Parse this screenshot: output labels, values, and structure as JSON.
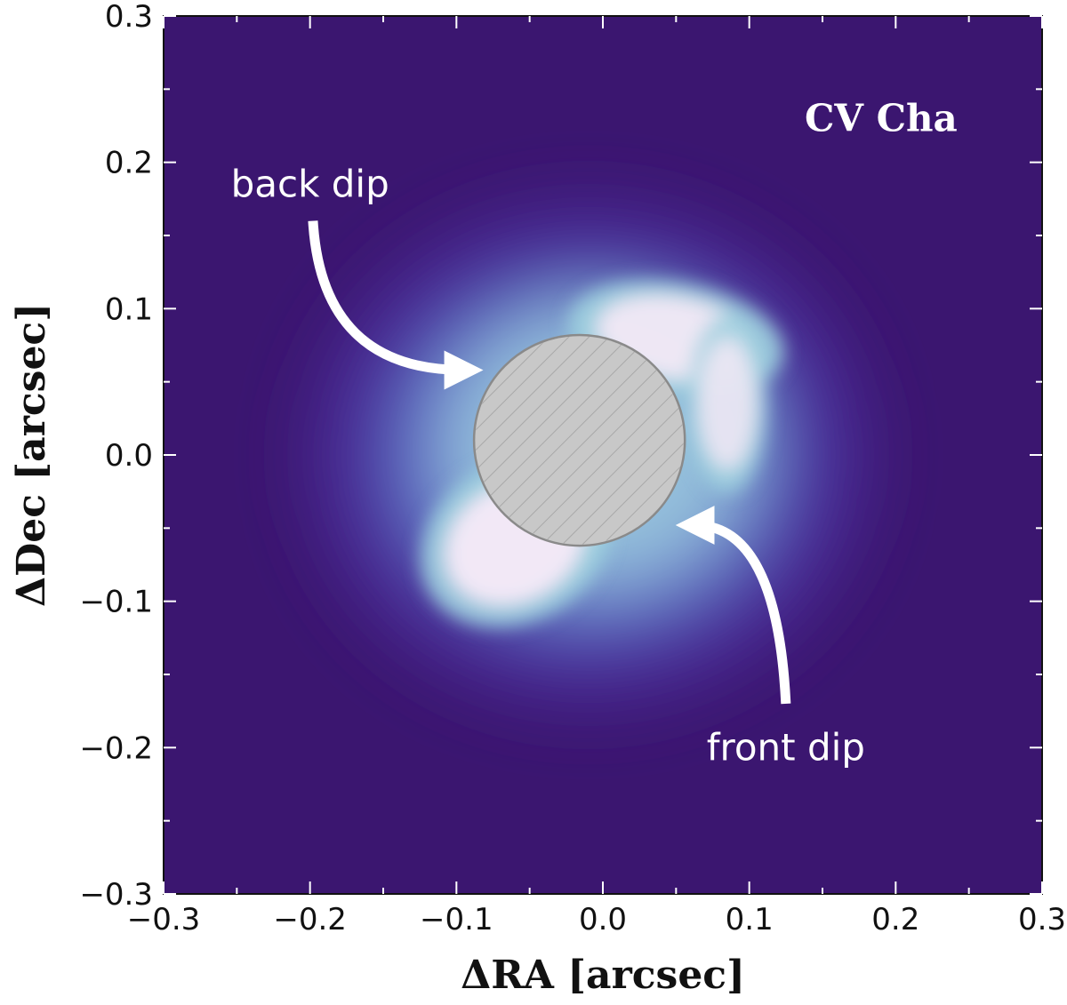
{
  "chart_data": {
    "type": "heatmap",
    "title": "",
    "xlabel": "ΔRA [arcsec]",
    "ylabel": "ΔDec [arcsec]",
    "xlim": [
      -0.3,
      0.3
    ],
    "ylim": [
      -0.3,
      0.3
    ],
    "x_ticks": [
      -0.3,
      -0.2,
      -0.1,
      0.0,
      0.1,
      0.2,
      0.3
    ],
    "y_ticks": [
      -0.3,
      -0.2,
      -0.1,
      0.0,
      0.1,
      0.2,
      0.3
    ],
    "x_tick_labels": [
      "−0.3",
      "−0.2",
      "−0.1",
      "0.0",
      "0.1",
      "0.2",
      "0.3"
    ],
    "y_tick_labels": [
      "−0.3",
      "−0.2",
      "−0.1",
      "0.0",
      "0.1",
      "0.2",
      "0.3"
    ],
    "grid": false,
    "colormap": [
      "#3b1670",
      "#4a2b96",
      "#5b67c4",
      "#9fd0df",
      "#f2e8f6"
    ],
    "target_label": "CV Cha",
    "target_label_pos": {
      "x": 0.19,
      "y": 0.23
    },
    "mask": {
      "center_x": -0.016,
      "center_y": 0.01,
      "radius": 0.072,
      "color": "#c8c8c8",
      "hatch": true
    },
    "brightness_blobs": [
      {
        "x": -0.06,
        "y": -0.06,
        "sx": 0.05,
        "sy": 0.04,
        "rot": 30,
        "amp": 1.0
      },
      {
        "x": 0.05,
        "y": 0.08,
        "sx": 0.055,
        "sy": 0.028,
        "rot": -10,
        "amp": 0.95
      },
      {
        "x": 0.085,
        "y": 0.035,
        "sx": 0.02,
        "sy": 0.045,
        "rot": 0,
        "amp": 0.85
      }
    ],
    "annotations": [
      {
        "text": "back dip",
        "text_x": -0.2,
        "text_y": 0.185,
        "arrow_from": [
          -0.198,
          0.16
        ],
        "arrow_to": [
          -0.095,
          0.058
        ]
      },
      {
        "text": "front dip",
        "text_x": 0.125,
        "text_y": -0.2,
        "arrow_from": [
          0.125,
          -0.17
        ],
        "arrow_to": [
          0.063,
          -0.048
        ]
      }
    ]
  }
}
